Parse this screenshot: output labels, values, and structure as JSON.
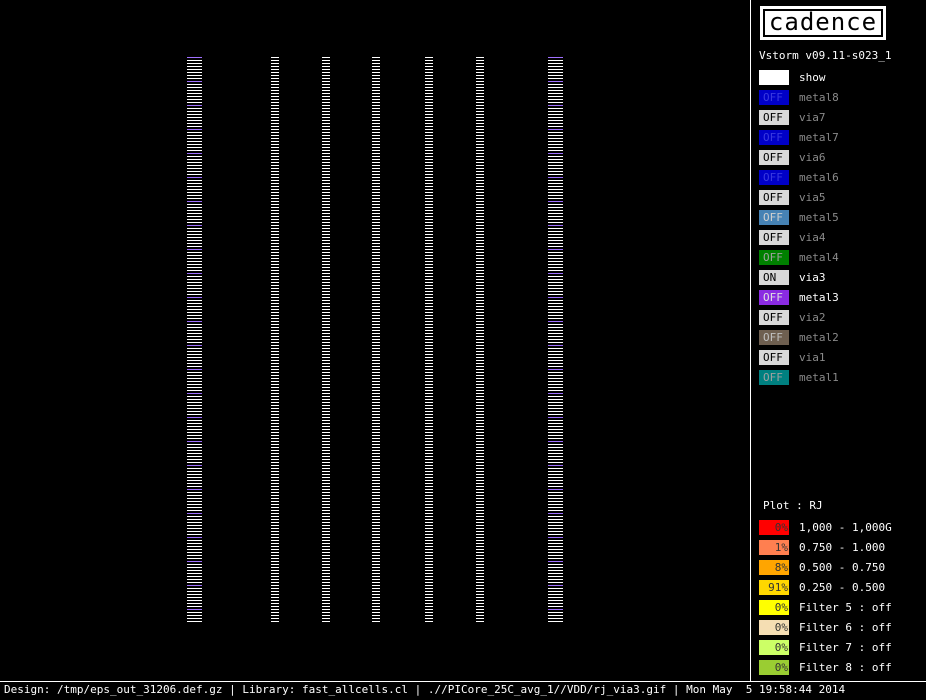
{
  "logo": "cadence",
  "version": "Vstorm v09.11-s023_1",
  "layers": [
    {
      "state": null,
      "name": "show",
      "color": "#ffffff",
      "label_color": "#ffffff",
      "state_color": "#000000"
    },
    {
      "state": "OFF",
      "name": "metal8",
      "color": "#0000c8",
      "label_color": "#8a8a8a",
      "state_color": "#3a3ae0"
    },
    {
      "state": "OFF",
      "name": "via7",
      "color": "#d8d8d8",
      "label_color": "#8a8a8a",
      "state_color": "#000000"
    },
    {
      "state": "OFF",
      "name": "metal7",
      "color": "#0000c8",
      "label_color": "#8a8a8a",
      "state_color": "#3a3ae0"
    },
    {
      "state": "OFF",
      "name": "via6",
      "color": "#d8d8d8",
      "label_color": "#8a8a8a",
      "state_color": "#000000"
    },
    {
      "state": "OFF",
      "name": "metal6",
      "color": "#0000c8",
      "label_color": "#8a8a8a",
      "state_color": "#3a3ae0"
    },
    {
      "state": "OFF",
      "name": "via5",
      "color": "#d8d8d8",
      "label_color": "#8a8a8a",
      "state_color": "#000000"
    },
    {
      "state": "OFF",
      "name": "metal5",
      "color": "#4682b4",
      "label_color": "#8a8a8a",
      "state_color": "#d0d0d0"
    },
    {
      "state": "OFF",
      "name": "via4",
      "color": "#d8d8d8",
      "label_color": "#8a8a8a",
      "state_color": "#000000"
    },
    {
      "state": "OFF",
      "name": "metal4",
      "color": "#008000",
      "label_color": "#8a8a8a",
      "state_color": "#a0a0a0"
    },
    {
      "state": "ON",
      "name": "via3",
      "color": "#d8d8d8",
      "label_color": "#ffffff",
      "state_color": "#000000"
    },
    {
      "state": "OFF",
      "name": "metal3",
      "color": "#8a2be2",
      "label_color": "#ffffff",
      "state_color": "#e0e0e0"
    },
    {
      "state": "OFF",
      "name": "via2",
      "color": "#d8d8d8",
      "label_color": "#8a8a8a",
      "state_color": "#000000"
    },
    {
      "state": "OFF",
      "name": "metal2",
      "color": "#6e5f50",
      "label_color": "#8a8a8a",
      "state_color": "#c0c0c0"
    },
    {
      "state": "OFF",
      "name": "via1",
      "color": "#d8d8d8",
      "label_color": "#8a8a8a",
      "state_color": "#000000"
    },
    {
      "state": "OFF",
      "name": "metal1",
      "color": "#008080",
      "label_color": "#8a8a8a",
      "state_color": "#a0a0a0"
    }
  ],
  "plot": {
    "title": "Plot : RJ",
    "rows": [
      {
        "percent": "0%",
        "label": "1,000 - 1,000G",
        "color": "#ff0000"
      },
      {
        "percent": "1%",
        "label": "0.750 - 1.000",
        "color": "#ff7f50"
      },
      {
        "percent": "8%",
        "label": "0.500 - 0.750",
        "color": "#ffa500"
      },
      {
        "percent": "91%",
        "label": "0.250 - 0.500",
        "color": "#ffd700"
      },
      {
        "percent": "0%",
        "label": "Filter 5 : off",
        "color": "#ffff00"
      },
      {
        "percent": "0%",
        "label": "Filter 6 : off",
        "color": "#f5deb3"
      },
      {
        "percent": "0%",
        "label": "Filter 7 : off",
        "color": "#ccff66"
      },
      {
        "percent": "0%",
        "label": "Filter 8 : off",
        "color": "#9acd32"
      }
    ]
  },
  "status": "Design: /tmp/eps_out_31206.def.gz | Library: fast_allcells.cl | .//PICore_25C_avg_1//VDD/rj_via3.gif | Mon May  5 19:58:44 2014"
}
